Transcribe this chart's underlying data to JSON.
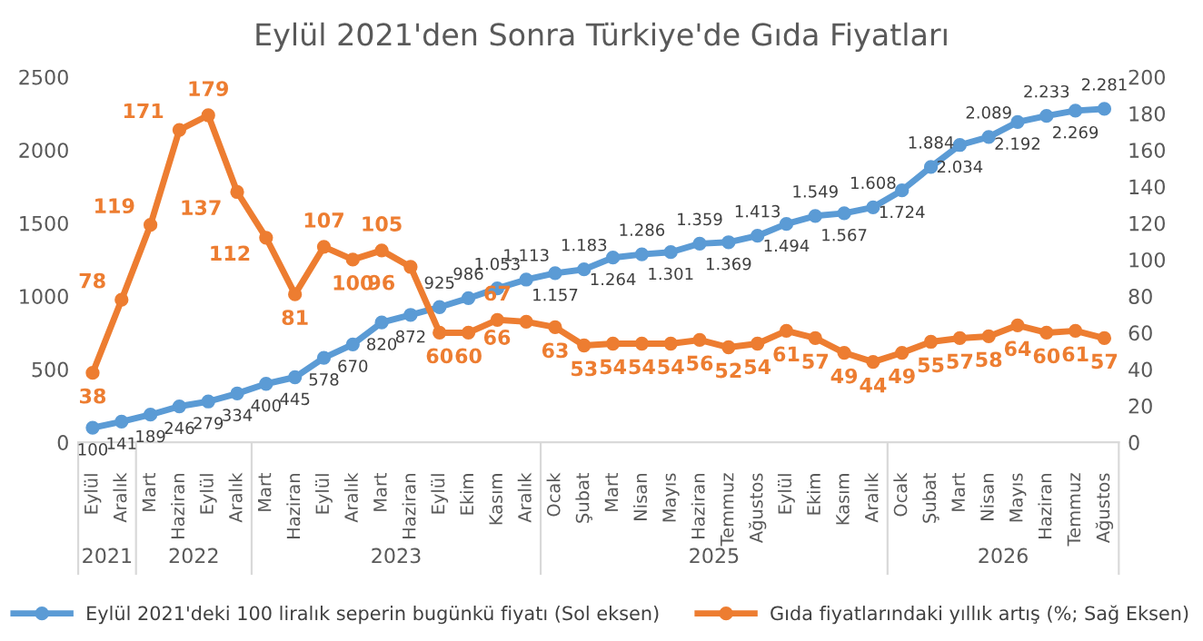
{
  "chart_data": {
    "type": "line",
    "title": "Eylül 2021'den Sonra Türkiye'de Gıda Fiyatları",
    "categories": [
      "Eylül",
      "Aralık",
      "Mart",
      "Haziran",
      "Eylül",
      "Aralık",
      "Mart",
      "Haziran",
      "Eylül",
      "Aralık",
      "Mart",
      "Haziran",
      "Eylül",
      "Ekim",
      "Kasım",
      "Aralık",
      "Ocak",
      "Şubat",
      "Mart",
      "Nisan",
      "Mayıs",
      "Haziran",
      "Temmuz",
      "Ağustos",
      "Eylül",
      "Ekim",
      "Kasım",
      "Aralık",
      "Ocak",
      "Şubat",
      "Mart",
      "Nisan",
      "Mayıs",
      "Haziran",
      "Temmuz",
      "Ağustos"
    ],
    "series": [
      {
        "name": "Eylül 2021'deki 100 liralık seperin bugünkü fiyatı (Sol eksen)",
        "color": "#5b9bd5",
        "values": [
          100,
          141,
          189,
          246,
          279,
          334,
          400,
          445,
          578,
          670,
          820,
          872,
          925,
          986,
          1053,
          1113,
          1157,
          1183,
          1264,
          1286,
          1301,
          1359,
          1369,
          1413,
          1494,
          1549,
          1567,
          1608,
          1724,
          1884,
          2034,
          2089,
          2192,
          2233,
          2269,
          2281
        ],
        "value_labels": [
          "100",
          "141",
          "189",
          "246",
          "279",
          "334",
          "400",
          "445",
          "578",
          "670",
          "820",
          "872",
          "925",
          "986",
          "1.053",
          "1.113",
          "1.157",
          "1.183",
          "1.264",
          "1.286",
          "1.301",
          "1.359",
          "1.369",
          "1.413",
          "1.494",
          "1.549",
          "1.567",
          "1.608",
          "1.724",
          "1.884",
          "2.034",
          "2.089",
          "2.192",
          "2.233",
          "2.269",
          "2.281"
        ]
      },
      {
        "name": "Gıda fiyatlarındaki yıllık artış (%; Sağ Eksen)",
        "color": "#ed7d31",
        "axis": "y2",
        "values": [
          38,
          78,
          119,
          171,
          179,
          137,
          112,
          81,
          107,
          100,
          105,
          96,
          60,
          60,
          67,
          66,
          63,
          53,
          54,
          54,
          54,
          56,
          52,
          54,
          61,
          57,
          49,
          44,
          49,
          55,
          57,
          58,
          64,
          60,
          61,
          57
        ],
        "data_labels": true
      }
    ],
    "annotations": [
      "2021",
      "2022",
      "2023",
      "2025",
      "2026"
    ],
    "ylim": [
      0,
      2500
    ],
    "yticks": [
      0,
      500,
      1000,
      1500,
      2000,
      2500
    ],
    "y2lim": [
      0,
      200
    ],
    "y2ticks": [
      0,
      20,
      40,
      60,
      80,
      100,
      120,
      140,
      160,
      180,
      200
    ],
    "marker": "circle",
    "grid": false,
    "legend": "bottom"
  }
}
